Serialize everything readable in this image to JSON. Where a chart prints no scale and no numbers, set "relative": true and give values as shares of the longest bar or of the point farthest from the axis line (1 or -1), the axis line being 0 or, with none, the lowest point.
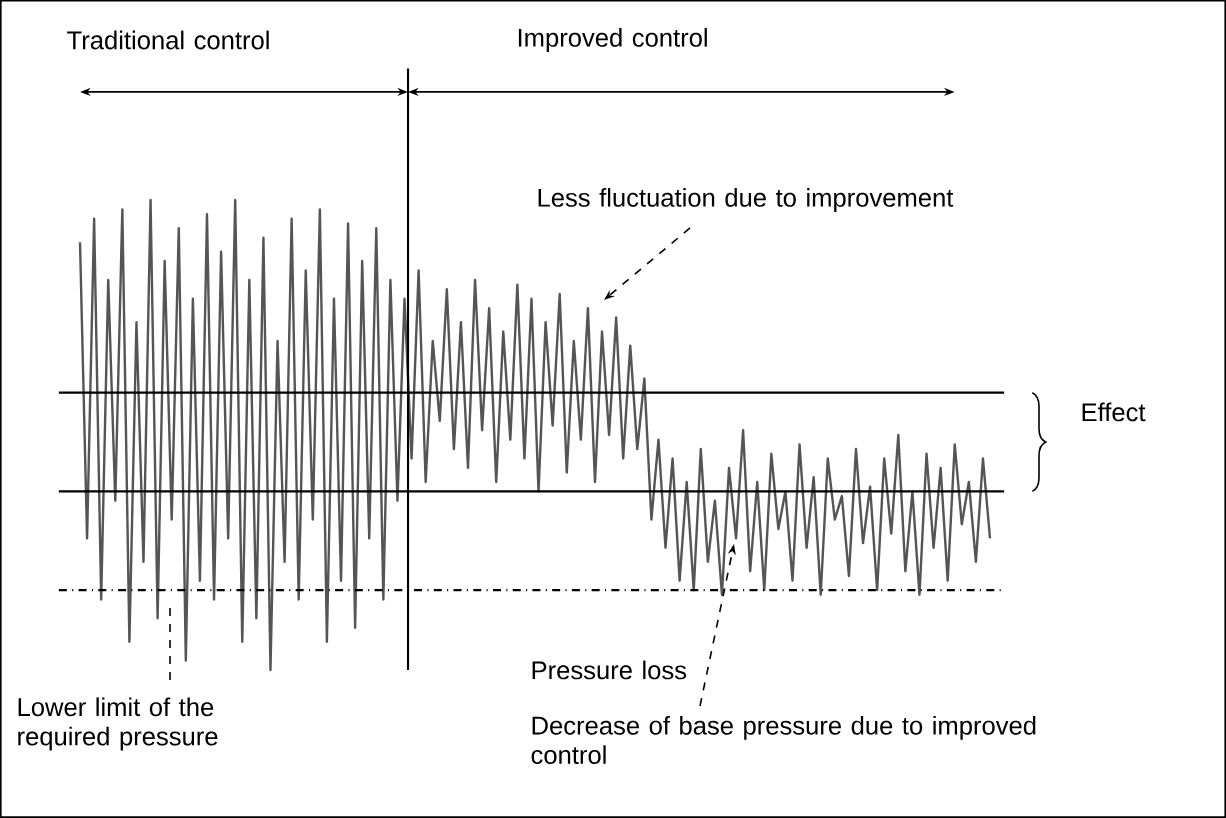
{
  "chart_data": {
    "type": "line",
    "relative": true,
    "color": "#555555",
    "categories": [
      null,
      null,
      null,
      null,
      null,
      null,
      null,
      null,
      null,
      null,
      null,
      null,
      null,
      null,
      null,
      null,
      null,
      null,
      null,
      null,
      null,
      null,
      null,
      null,
      null,
      null,
      null,
      null,
      null,
      null,
      null,
      null,
      null,
      null,
      null,
      null,
      null,
      null,
      null,
      null,
      null,
      null,
      null,
      null,
      null,
      null,
      null,
      null,
      null,
      null,
      null,
      null,
      null,
      null,
      null,
      null,
      null,
      null,
      null,
      null,
      null,
      null,
      null,
      null,
      null,
      null,
      null,
      null,
      null,
      null,
      null,
      null,
      null,
      null,
      null,
      null,
      null,
      null,
      null,
      null,
      null,
      null,
      null,
      null,
      null,
      null,
      null,
      null,
      null,
      null,
      null,
      null,
      null,
      null,
      null,
      null,
      null,
      null,
      null,
      null,
      null,
      null,
      null,
      null,
      null,
      null,
      null,
      null,
      null,
      null,
      null,
      null,
      null,
      null,
      null,
      null,
      null,
      null,
      null,
      null,
      null,
      null,
      null,
      null,
      null,
      null,
      null,
      null,
      null,
      null
    ],
    "values": [
      0.91,
      0.28,
      0.96,
      0.15,
      0.83,
      0.36,
      0.98,
      0.06,
      0.74,
      0.23,
      1.0,
      0.11,
      0.87,
      0.32,
      0.94,
      0.02,
      0.79,
      0.19,
      0.97,
      0.15,
      0.89,
      0.28,
      1.0,
      0.06,
      0.83,
      0.11,
      0.92,
      0.0,
      0.7,
      0.23,
      0.96,
      0.15,
      0.85,
      0.32,
      0.98,
      0.06,
      0.79,
      0.19,
      0.95,
      0.09,
      0.87,
      0.28,
      0.94,
      0.15,
      0.83,
      0.36,
      0.79,
      0.45,
      0.85,
      0.4,
      0.7,
      0.53,
      0.81,
      0.47,
      0.74,
      0.43,
      0.83,
      0.51,
      0.77,
      0.4,
      0.72,
      0.49,
      0.82,
      0.45,
      0.79,
      0.38,
      0.74,
      0.52,
      0.8,
      0.42,
      0.7,
      0.49,
      0.77,
      0.4,
      0.72,
      0.5,
      0.75,
      0.45,
      0.69,
      0.47,
      0.62,
      0.32,
      0.49,
      0.26,
      0.45,
      0.19,
      0.4,
      0.17,
      0.47,
      0.23,
      0.36,
      0.16,
      0.43,
      0.28,
      0.51,
      0.21,
      0.4,
      0.17,
      0.46,
      0.3,
      0.38,
      0.19,
      0.48,
      0.26,
      0.41,
      0.16,
      0.45,
      0.32,
      0.37,
      0.2,
      0.47,
      0.27,
      0.39,
      0.17,
      0.45,
      0.29,
      0.5,
      0.21,
      0.38,
      0.16,
      0.46,
      0.26,
      0.43,
      0.19,
      0.48,
      0.31,
      0.4,
      0.23,
      0.45,
      0.28
    ],
    "ref_lines": [
      {
        "axis": "y",
        "value": 0.59,
        "color": "#000000",
        "line_style": "solid"
      },
      {
        "axis": "y",
        "value": 0.38,
        "color": "#000000",
        "line_style": "solid"
      },
      {
        "axis": "y",
        "value": 0.17,
        "color": "#000000",
        "line_style": "dashed"
      }
    ],
    "annotations": [
      "Traditional control",
      "Improved control",
      "Less fluctuation due to improvement",
      "Effect",
      "Pressure loss",
      "Lower limit of the required pressure",
      "Decrease of base pressure due to improved control"
    ]
  }
}
